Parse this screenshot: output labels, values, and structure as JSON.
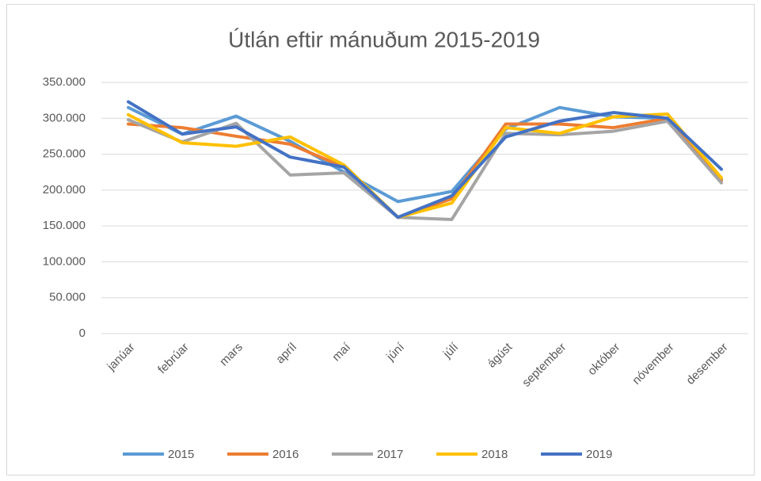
{
  "chart_data": {
    "type": "line",
    "title": "Útlán eftir mánuðum 2015-2019",
    "categories": [
      "janúar",
      "febrúar",
      "mars",
      "apríl",
      "maí",
      "júní",
      "júlí",
      "ágúst",
      "september",
      "október",
      "nóvember",
      "desember"
    ],
    "series": [
      {
        "name": "2015",
        "color": "#5b9bd5",
        "values": [
          315000,
          278000,
          303000,
          268000,
          225000,
          184000,
          198000,
          285000,
          315000,
          302000,
          300000,
          215000
        ]
      },
      {
        "name": "2016",
        "color": "#ed7d31",
        "values": [
          292000,
          287000,
          275000,
          264000,
          232000,
          162000,
          188000,
          292000,
          292000,
          287000,
          300000,
          213000
        ]
      },
      {
        "name": "2017",
        "color": "#a5a5a5",
        "values": [
          298000,
          267000,
          293000,
          221000,
          224000,
          162000,
          159000,
          279000,
          277000,
          282000,
          296000,
          210000
        ]
      },
      {
        "name": "2018",
        "color": "#ffc000",
        "values": [
          305000,
          266000,
          261000,
          274000,
          235000,
          162000,
          182000,
          287000,
          279000,
          302000,
          306000,
          217000
        ]
      },
      {
        "name": "2019",
        "color": "#4472c4",
        "values": [
          323000,
          278000,
          288000,
          246000,
          232000,
          162000,
          192000,
          274000,
          296000,
          308000,
          300000,
          229000
        ]
      }
    ],
    "ylim": [
      0,
      350000
    ],
    "yticks": [
      0,
      {
        "value": 50000,
        "label": "50.000"
      },
      {
        "value": 100000,
        "label": "100.000"
      },
      {
        "value": 150000,
        "label": "150.000"
      },
      {
        "value": 200000,
        "label": "200.000"
      },
      {
        "value": 250000,
        "label": "250.000"
      },
      {
        "value": 300000,
        "label": "300.000"
      },
      {
        "value": 350000,
        "label": "350.000"
      }
    ],
    "grid": true,
    "legend": "bottom"
  }
}
